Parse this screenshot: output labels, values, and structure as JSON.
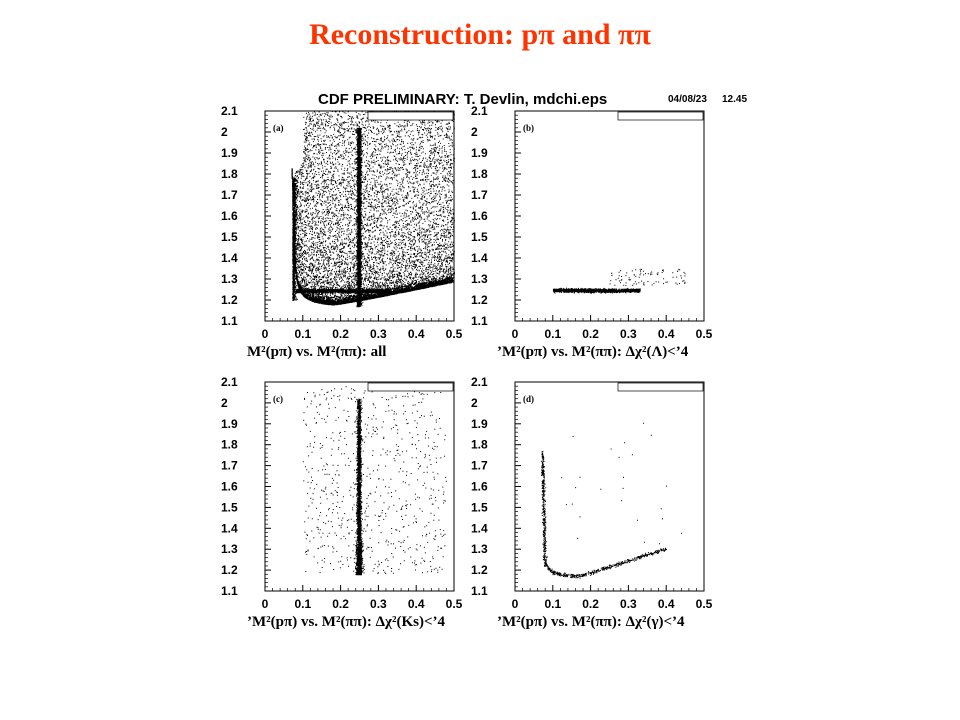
{
  "slide": {
    "title": "Reconstruction: pπ and ππ"
  },
  "figure": {
    "header": "CDF PRELIMINARY: T. Devlin, mdchi.eps",
    "date": "04/08/23",
    "time": "12.45"
  },
  "chart_data": [
    {
      "type": "scatter",
      "panel": "(a)",
      "xlabel": "M²(pπ) vs. M²(ππ): all",
      "xlim": [
        0,
        0.5
      ],
      "ylim": [
        1.1,
        2.1
      ],
      "xticks": [
        "0",
        "0.1",
        "0.2",
        "0.3",
        "0.4",
        "0.5"
      ],
      "yticks": [
        "1.1",
        "1.2",
        "1.3",
        "1.4",
        "1.5",
        "1.6",
        "1.7",
        "1.8",
        "1.9",
        "2",
        "2.1"
      ],
      "description_of_points": [
        {
          "component": "vertical band",
          "x": 0.25,
          "y_range": [
            1.17,
            2.02
          ]
        },
        {
          "component": "horizontal band",
          "y": 1.245,
          "x_range": [
            0.08,
            0.33
          ]
        },
        {
          "component": "curved band",
          "x_range": [
            0.08,
            0.5
          ],
          "y_range": [
            1.15,
            1.78
          ]
        }
      ]
    },
    {
      "type": "scatter",
      "panel": "(b)",
      "xlabel": "’M²(pπ) vs. M²(ππ): Δχ²(Λ)<’4",
      "xlim": [
        0,
        0.5
      ],
      "ylim": [
        1.1,
        2.1
      ],
      "xticks": [
        "0",
        "0.1",
        "0.2",
        "0.3",
        "0.4",
        "0.5"
      ],
      "yticks": [
        "1.1",
        "1.2",
        "1.3",
        "1.4",
        "1.5",
        "1.6",
        "1.7",
        "1.8",
        "1.9",
        "2",
        "2.1"
      ],
      "description_of_points": [
        {
          "component": "horizontal band",
          "y": 1.245,
          "x_range": [
            0.1,
            0.33
          ]
        }
      ]
    },
    {
      "type": "scatter",
      "panel": "(c)",
      "xlabel": "’M²(pπ) vs. M²(ππ): Δχ²(Ks)<’4",
      "xlim": [
        0,
        0.5
      ],
      "ylim": [
        1.1,
        2.1
      ],
      "xticks": [
        "0",
        "0.1",
        "0.2",
        "0.3",
        "0.4",
        "0.5"
      ],
      "yticks": [
        "1.1",
        "1.2",
        "1.3",
        "1.4",
        "1.5",
        "1.6",
        "1.7",
        "1.8",
        "1.9",
        "2",
        "2.1"
      ],
      "description_of_points": [
        {
          "component": "vertical band",
          "x": 0.25,
          "y_range": [
            1.18,
            2.02
          ]
        }
      ]
    },
    {
      "type": "scatter",
      "panel": "(d)",
      "xlabel": "’M²(pπ) vs. M²(ππ): Δχ²(γ)<’4",
      "xlim": [
        0,
        0.5
      ],
      "ylim": [
        1.1,
        2.1
      ],
      "xticks": [
        "0",
        "0.1",
        "0.2",
        "0.3",
        "0.4",
        "0.5"
      ],
      "yticks": [
        "1.1",
        "1.2",
        "1.3",
        "1.4",
        "1.5",
        "1.6",
        "1.7",
        "1.8",
        "1.9",
        "2",
        "2.1"
      ],
      "description_of_points": [
        {
          "component": "curved band",
          "x_range": [
            0.07,
            0.4
          ],
          "y_range": [
            1.16,
            1.77
          ]
        }
      ]
    }
  ]
}
